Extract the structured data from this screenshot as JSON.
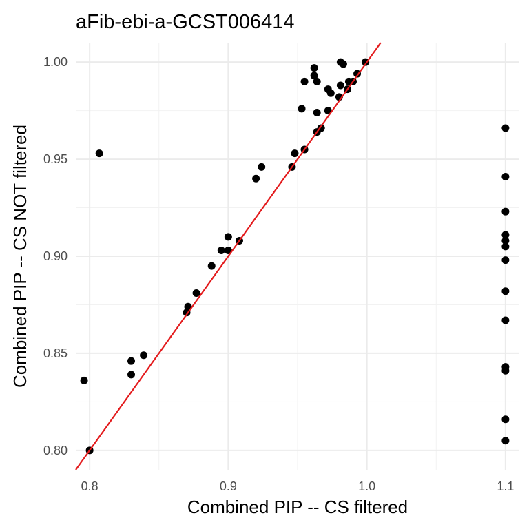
{
  "chart_data": {
    "type": "scatter",
    "title": "aFib-ebi-a-GCST006414",
    "xlabel": "Combined PIP -- CS filtered",
    "ylabel": "Combined PIP -- CS NOT filtered",
    "xlim": [
      0.79,
      1.11
    ],
    "ylim": [
      0.79,
      1.01
    ],
    "x_ticks": [
      0.8,
      0.9,
      1.0,
      1.1
    ],
    "x_tick_labels": [
      "0.8",
      "0.9",
      "1.0",
      "1.1"
    ],
    "y_ticks": [
      0.8,
      0.85,
      0.9,
      0.95,
      1.0
    ],
    "y_tick_labels": [
      "0.80",
      "0.85",
      "0.90",
      "0.95",
      "1.00"
    ],
    "grid": true,
    "point_color": "#000000",
    "reference_line": {
      "type": "identity",
      "color": "#e31a1c"
    },
    "points": [
      [
        0.796,
        0.836
      ],
      [
        0.8,
        0.8
      ],
      [
        0.807,
        0.953
      ],
      [
        0.83,
        0.839
      ],
      [
        0.83,
        0.846
      ],
      [
        0.839,
        0.849
      ],
      [
        0.87,
        0.871
      ],
      [
        0.871,
        0.874
      ],
      [
        0.877,
        0.881
      ],
      [
        0.888,
        0.895
      ],
      [
        0.895,
        0.903
      ],
      [
        0.9,
        0.91
      ],
      [
        0.9,
        0.903
      ],
      [
        0.908,
        0.908
      ],
      [
        0.92,
        0.94
      ],
      [
        0.924,
        0.946
      ],
      [
        0.946,
        0.946
      ],
      [
        0.948,
        0.953
      ],
      [
        0.955,
        0.955
      ],
      [
        0.953,
        0.976
      ],
      [
        0.955,
        0.99
      ],
      [
        0.962,
        0.997
      ],
      [
        0.962,
        0.993
      ],
      [
        0.964,
        0.99
      ],
      [
        0.964,
        0.974
      ],
      [
        0.964,
        0.964
      ],
      [
        0.967,
        0.966
      ],
      [
        0.972,
        0.975
      ],
      [
        0.972,
        0.986
      ],
      [
        0.974,
        0.984
      ],
      [
        0.98,
        0.982
      ],
      [
        0.981,
        0.988
      ],
      [
        0.981,
        1.0
      ],
      [
        0.983,
        0.999
      ],
      [
        0.986,
        0.986
      ],
      [
        0.987,
        0.99
      ],
      [
        0.99,
        0.99
      ],
      [
        0.993,
        0.994
      ],
      [
        0.999,
        1.0
      ],
      [
        1.1,
        0.966
      ],
      [
        1.1,
        0.941
      ],
      [
        1.1,
        0.923
      ],
      [
        1.1,
        0.911
      ],
      [
        1.1,
        0.908
      ],
      [
        1.1,
        0.905
      ],
      [
        1.1,
        0.898
      ],
      [
        1.1,
        0.882
      ],
      [
        1.1,
        0.867
      ],
      [
        1.1,
        0.843
      ],
      [
        1.1,
        0.841
      ],
      [
        1.1,
        0.816
      ],
      [
        1.1,
        0.805
      ]
    ]
  }
}
